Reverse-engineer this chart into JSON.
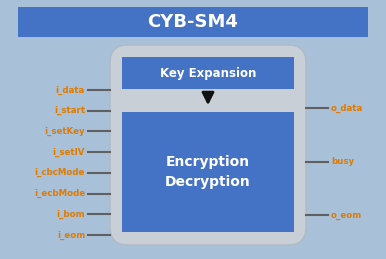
{
  "title": "CYB-SM4",
  "title_bg": "#4472c4",
  "title_color": "#ffffff",
  "bg_color": "#a8c0d8",
  "outer_box_color": "#c8cfd6",
  "outer_box_edge": "#b0bac4",
  "key_exp_box_color": "#4472c4",
  "enc_dec_box_color": "#4472c4",
  "key_exp_text": "Key Expansion",
  "enc_dec_text": "Encryption\nDecryption",
  "left_labels": [
    "i_data",
    "i_start",
    "i_setKey",
    "i_setIV",
    "i_cbcMode",
    "i_ecbMode",
    "i_bom",
    "i_eom"
  ],
  "right_labels": [
    "o_data",
    "busy",
    "o_eom"
  ],
  "label_color": "#e07b00",
  "line_color": "#606060",
  "box_text_color": "#ffffff",
  "arrow_color": "#111111",
  "figw": 3.86,
  "figh": 2.59,
  "dpi": 100
}
